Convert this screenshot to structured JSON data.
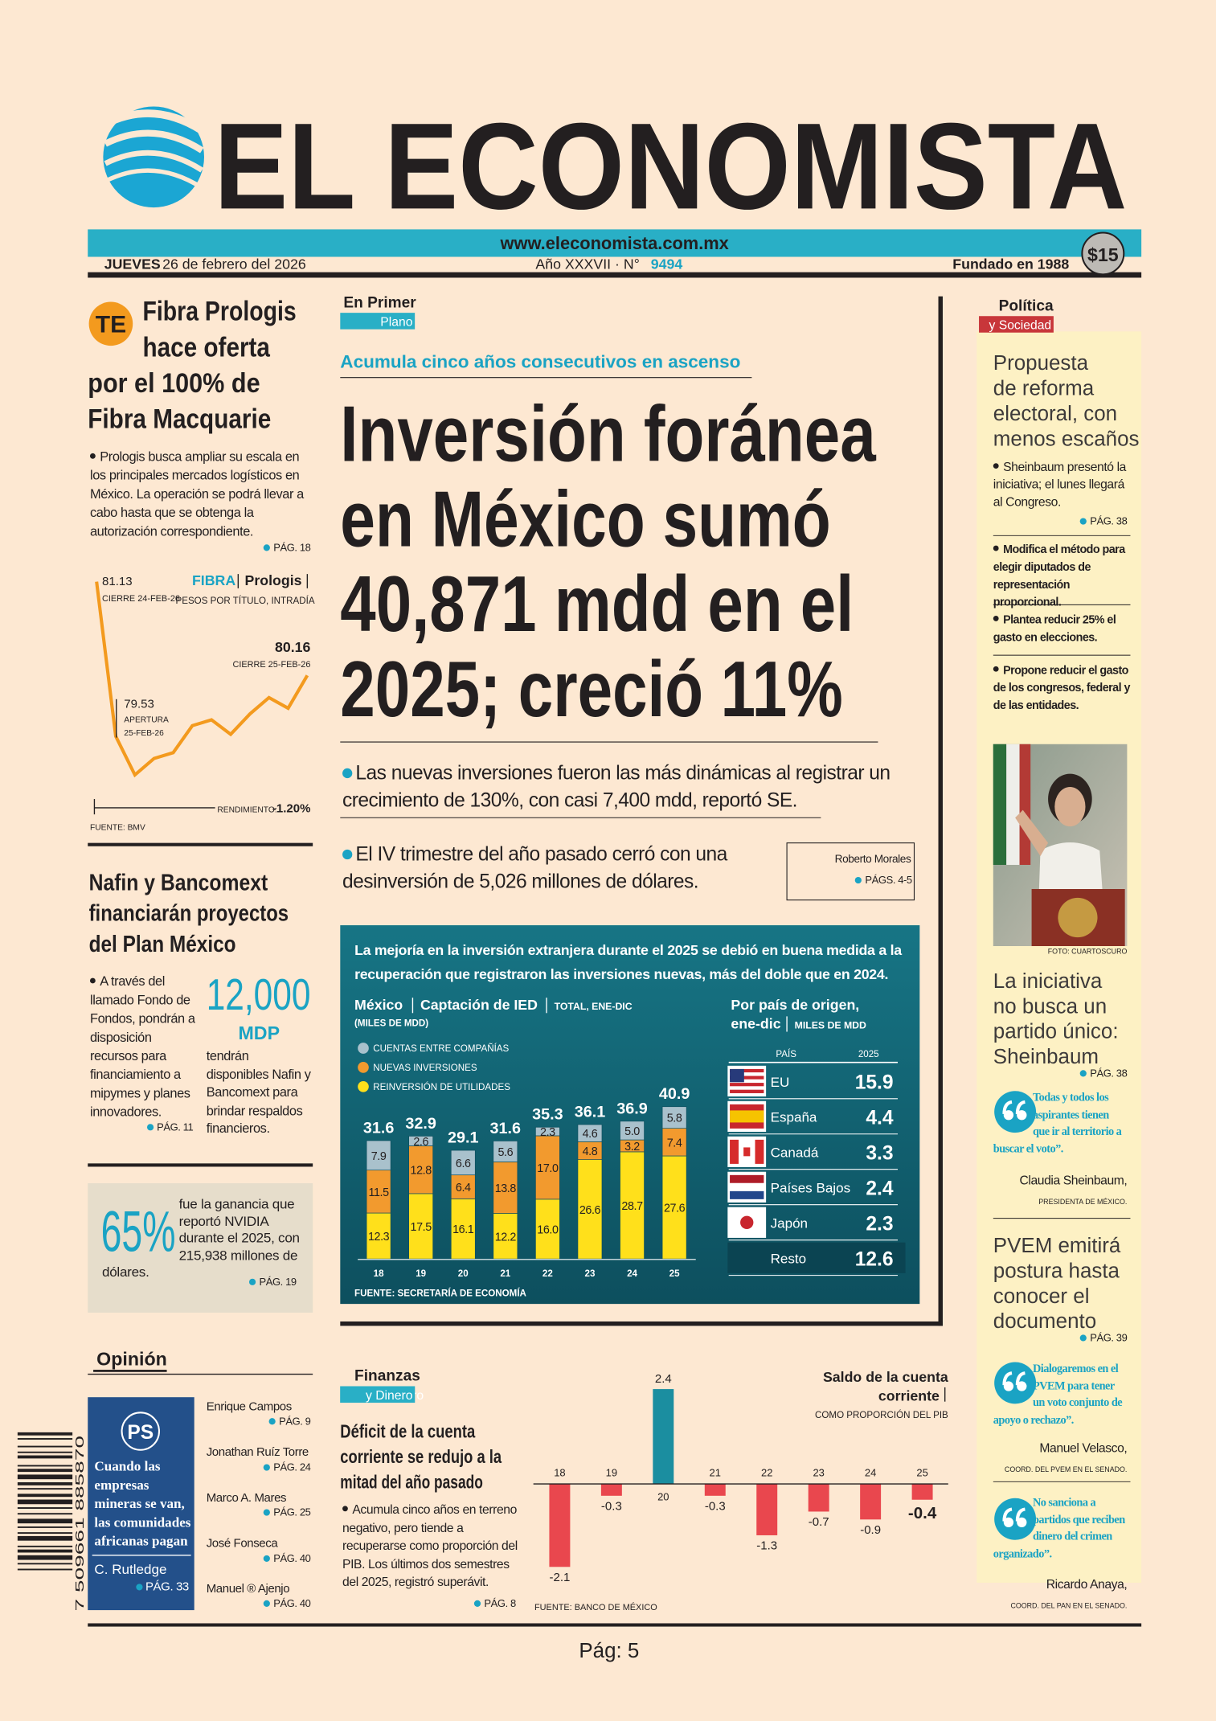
{
  "masthead": {
    "title": "EL ECONOMISTA",
    "url": "www.eleconomista.com.mx",
    "day": "JUEVES",
    "date": "26 de febrero del 2026",
    "edition": "Año XXXVII · N°",
    "issue": "9494",
    "founded": "Fundado en 1988",
    "price": "$15"
  },
  "fibra": {
    "badge": "TE",
    "headline": [
      "Fibra Prologis",
      "hace oferta",
      "por el 100% de",
      "Fibra Macquarie"
    ],
    "body": "Prologis busca ampliar su escala en los principales mercados logísticos en México. La operación se podrá llevar a cabo hasta que se obtenga la autorización correspondiente.",
    "page": "PÁG. 18",
    "chart": {
      "type": "line",
      "ticker": "FIBRA",
      "name": "Prologis",
      "units": "PESOS POR TÍTULO, INTRADÍA",
      "color": "#f39a1e",
      "values": [
        81.13,
        79.53,
        79.13,
        79.3,
        79.36,
        79.64,
        79.7,
        79.55,
        79.76,
        79.93,
        79.82,
        80.16
      ],
      "start_label": "CIERRE 24-FEB-26",
      "open_label": "APERTURA 25-FEB-26",
      "close_label": "CIERRE 25-FEB-26",
      "return_label": "RENDIMIENTO:",
      "return": "-1.20%",
      "source": "FUENTE: BMV"
    }
  },
  "nafin": {
    "headline": [
      "Nafin y Bancomext",
      "financiarán proyectos",
      "del Plan México"
    ],
    "body": "A través del llamado Fondo de Fondos, pondrán a disposición recursos para financiamiento a mipymes y planes innovadores.",
    "page": "PÁG. 11",
    "figure": "12,000",
    "unit": "MDP",
    "figure_text": "tendrán disponibles Nafin y Bancomext para brindar respaldos financieros."
  },
  "nvidia": {
    "figure": "65%",
    "text": "fue la ganancia que reportó NVIDIA durante el 2025, con 215,938 millones de dólares.",
    "page": "PÁG. 19"
  },
  "opinion": {
    "title": "Opinión",
    "featured": {
      "logo": "PS",
      "text": "Cuando las empresas mineras se van, las comunidades africanas pagan",
      "author": "C. Rutledge",
      "page": "PÁG. 33"
    },
    "columns": [
      {
        "author": "Enrique Campos",
        "page": "PÁG. 9"
      },
      {
        "author": "Jonathan Ruíz Torre",
        "page": "PÁG. 24"
      },
      {
        "author": "Marco A. Mares",
        "page": "PÁG. 25"
      },
      {
        "author": "José Fonseca",
        "page": "PÁG. 40"
      },
      {
        "author": "Manuel ® Ajenjo",
        "page": "PÁG. 40"
      }
    ]
  },
  "barcode": "7 509661 885870",
  "lead": {
    "section": "En Primer",
    "subsection": "Plano",
    "kicker": "Acumula cinco años consecutivos en ascenso",
    "headline": [
      "Inversión foránea",
      "en México sumó",
      "40,871 mdd en el",
      "2025; creció 11%"
    ],
    "bullets": [
      "Las nuevas inversiones fueron las más dinámicas al registrar un crecimiento de 130%, con casi 7,400 mdd, reportó SE.",
      "El IV trimestre del año pasado cerró con una desinversión de 5,026 millones de dólares."
    ],
    "author": "Roberto Morales",
    "page": "PÁGS. 4-5",
    "infographic": {
      "intro": "La mejoría en la inversión extranjera durante el 2025 se debió en buena medida a la recuperación que registraron las inversiones nuevas, más del doble que en 2024.",
      "chart": {
        "type": "bar",
        "stacked": true,
        "title": "México",
        "subtitle": "Captación de IED",
        "period": "TOTAL, ENE-DIC",
        "units": "(MILES DE MDD)",
        "categories": [
          "18",
          "19",
          "20",
          "21",
          "22",
          "23",
          "24",
          "25"
        ],
        "series": [
          {
            "name": "CUENTAS ENTRE COMPAÑÍAS",
            "color": "#a9c1cc",
            "values": [
              7.9,
              2.6,
              6.6,
              5.6,
              2.3,
              4.6,
              5.0,
              5.8
            ],
            "value_labels": [
              "7.9",
              "2.6",
              "6.6",
              "5.6",
              "2.3",
              "4.6",
              "5.0",
              "5.8"
            ]
          },
          {
            "name": "NUEVAS INVERSIONES",
            "color": "#f29a2e",
            "values": [
              11.5,
              12.8,
              6.4,
              13.8,
              17.0,
              4.8,
              3.2,
              7.4
            ],
            "value_labels": [
              "11.5",
              "12.8",
              "6.4",
              "13.8",
              "17.0",
              "4.8",
              "3.2",
              "7.4"
            ]
          },
          {
            "name": "REINVERSIÓN DE UTILIDADES",
            "color": "#ffe01b",
            "values": [
              12.3,
              17.5,
              16.1,
              12.2,
              16.0,
              26.6,
              28.7,
              27.6
            ],
            "value_labels": [
              "12.3",
              "17.5",
              "16.1",
              "12.2",
              "16.0",
              "26.6",
              "28.7",
              "27.6"
            ]
          }
        ],
        "totals": [
          31.6,
          32.9,
          29.1,
          31.6,
          35.3,
          36.1,
          36.9,
          40.9
        ],
        "source": "FUENTE: SECRETARÍA DE ECONOMÍA"
      },
      "table": {
        "title": "Por país de origen,",
        "period": "ene-dic",
        "units": "MILES DE MDD",
        "columns": [
          "PAÍS",
          "2025"
        ],
        "rows": [
          [
            "EU",
            15.9
          ],
          [
            "España",
            4.4
          ],
          [
            "Canadá",
            3.3
          ],
          [
            "Países Bajos",
            2.4
          ],
          [
            "Japón",
            2.3
          ],
          [
            "Resto",
            12.6
          ]
        ]
      }
    }
  },
  "finanzas": {
    "section": "Finanzas",
    "subsection": "y Dinero",
    "headline": [
      "Déficit de la cuenta",
      "corriente se redujo a la",
      "mitad del año pasado"
    ],
    "body": "Acumula cinco años en terreno negativo, pero tiende a recuperarse como proporción del PIB. Los últimos dos semestres del 2025, registró superávit.",
    "page": "PÁG. 8",
    "chart": {
      "type": "bar",
      "title": [
        "Saldo de la cuenta",
        "corriente"
      ],
      "subtitle": "COMO PROPORCIÓN DEL PIB",
      "categories": [
        "18",
        "19",
        "20",
        "21",
        "22",
        "23",
        "24",
        "25"
      ],
      "values": [
        -2.1,
        -0.3,
        2.4,
        -0.3,
        -1.3,
        -0.7,
        -0.9,
        -0.4
      ],
      "positive_color": "#1b8ea0",
      "negative_color": "#e9474e",
      "source": "FUENTE: BANCO DE MÉXICO"
    }
  },
  "politica": {
    "section": "Política",
    "subsection": "y Sociedad",
    "story1": {
      "headline": [
        "Propuesta",
        "de reforma",
        "electoral, con",
        "menos escaños"
      ],
      "body": "Sheinbaum presentó la iniciativa; el lunes llegará al Congreso.",
      "page": "PÁG. 38",
      "points": [
        "Modifica el método para elegir diputados de representación proporcional.",
        "Plantea reducir 25% el gasto en elecciones.",
        "Propone reducir el gasto de los congresos, federal y de las entidades."
      ]
    },
    "photo_credit": "FOTO: CUARTOSCURO",
    "story2": {
      "headline": [
        "La iniciativa",
        "no busca un",
        "partido único:",
        "Sheinbaum"
      ],
      "page": "PÁG. 38",
      "quote": {
        "text": "Todas y todos los aspirantes tienen que ir al territorio a buscar el voto”.",
        "speaker": "Claudia Sheinbaum,",
        "role": "PRESIDENTA DE MÉXICO."
      }
    },
    "story3": {
      "headline": [
        "PVEM emitirá",
        "postura hasta",
        "conocer el",
        "documento"
      ],
      "page": "PÁG. 39",
      "quotes": [
        {
          "text": "Dialogaremos en el PVEM para tener un voto conjunto de apoyo o rechazo”.",
          "speaker": "Manuel Velasco,",
          "role": "COORD. DEL PVEM EN EL SENADO."
        },
        {
          "text": "No sanciona a partidos que reciben dinero del crimen organizado”.",
          "speaker": "Ricardo Anaya,",
          "role": "COORD. DEL PAN EN EL SENADO."
        }
      ]
    }
  },
  "footer": {
    "page": "Pág: 5"
  }
}
